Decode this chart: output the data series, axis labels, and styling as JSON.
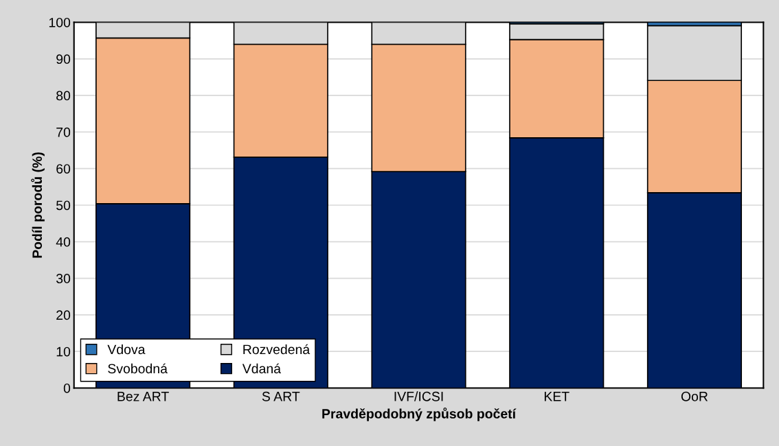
{
  "chart_data": {
    "type": "bar",
    "stacked": true,
    "xlabel": "Pravděpodobný způsob početí",
    "ylabel": "Podíl porodů (%)",
    "categories": [
      "Bez ART",
      "S ART",
      "IVF/ICSI",
      "KET",
      "OoR"
    ],
    "series": [
      {
        "name": "Vdaná",
        "color": "#002060",
        "values": [
          50.4,
          63.1,
          59.2,
          68.4,
          53.4
        ]
      },
      {
        "name": "Svobodná",
        "color": "#f4b183",
        "values": [
          45.3,
          30.9,
          34.8,
          26.9,
          30.7
        ]
      },
      {
        "name": "Rozvedená",
        "color": "#d9d9d9",
        "values": [
          4.3,
          6.0,
          6.0,
          4.3,
          15.0
        ]
      },
      {
        "name": "Vdova",
        "color": "#2e75b6",
        "values": [
          0,
          null,
          0,
          0.4,
          0.9
        ]
      }
    ],
    "ylim": [
      0,
      100
    ],
    "yticks": [
      0,
      10,
      20,
      30,
      40,
      50,
      60,
      70,
      80,
      90,
      100
    ],
    "grid": "y",
    "legend": "bottom left"
  }
}
